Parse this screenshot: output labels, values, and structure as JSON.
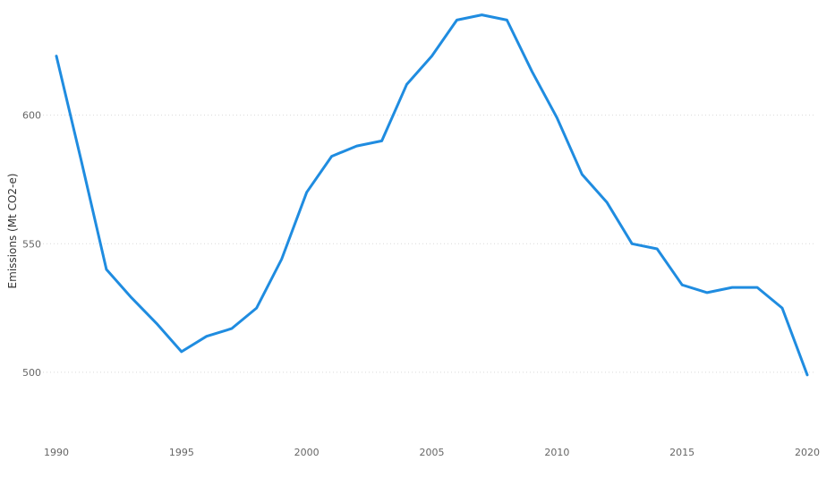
{
  "chart_data": {
    "type": "line",
    "xlabel": "",
    "ylabel": "Emissions (Mt CO2-e)",
    "x": [
      1990,
      1991,
      1992,
      1993,
      1994,
      1995,
      1996,
      1997,
      1998,
      1999,
      2000,
      2001,
      2002,
      2003,
      2004,
      2005,
      2006,
      2007,
      2008,
      2009,
      2010,
      2011,
      2012,
      2013,
      2014,
      2015,
      2016,
      2017,
      2018,
      2019,
      2020
    ],
    "series": [
      {
        "name": "",
        "color": "#1f8ce0",
        "values": [
          623,
          582,
          540,
          529,
          519,
          508,
          514,
          517,
          525,
          544,
          570,
          584,
          588,
          590,
          612,
          623,
          637,
          639,
          637,
          617,
          599,
          577,
          566,
          550,
          548,
          534,
          531,
          533,
          533,
          525,
          499
        ]
      }
    ],
    "xlim": [
      1990,
      2020
    ],
    "ylim": [
      477,
      642
    ],
    "x_ticks": [
      "1990",
      "1995",
      "2000",
      "2005",
      "2010",
      "2015",
      "2020"
    ],
    "y_ticks": [
      "500",
      "550",
      "600"
    ],
    "grid": "horizontal dotted",
    "legend": "none"
  }
}
